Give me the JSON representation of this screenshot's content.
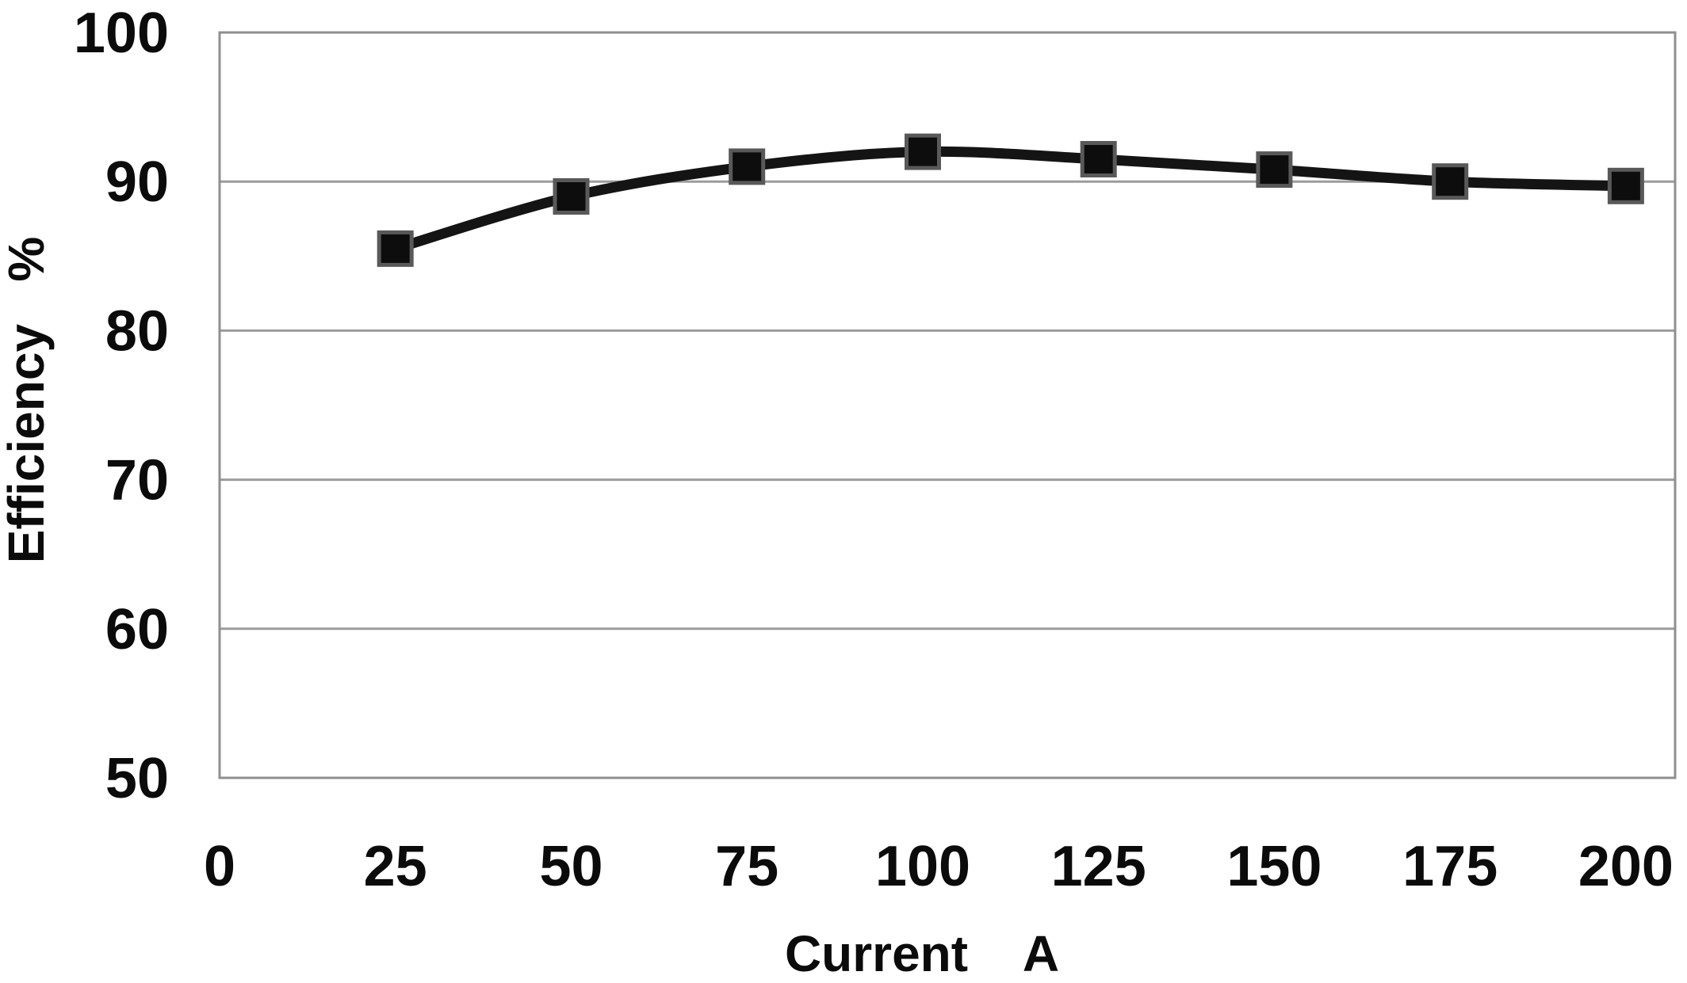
{
  "chart_data": {
    "type": "line",
    "title": "",
    "xlabel": "Current    A",
    "ylabel": "Efficiency   %",
    "x": [
      25,
      50,
      75,
      100,
      125,
      150,
      175,
      200
    ],
    "series": [
      {
        "name": "Efficiency",
        "values": [
          85.5,
          89,
          91,
          92,
          91.5,
          90.8,
          90,
          89.7
        ]
      }
    ],
    "xticks": [
      0,
      25,
      50,
      75,
      100,
      125,
      150,
      175,
      200
    ],
    "yticks": [
      50,
      60,
      70,
      80,
      90,
      100
    ],
    "xlim": [
      0,
      207
    ],
    "ylim": [
      50,
      100
    ],
    "grid": "horizontal",
    "legend": "none",
    "smooth": true,
    "marker": "square",
    "colors": {
      "line": "#141414",
      "marker_fill": "#0d0d0d",
      "marker_stroke": "#595959",
      "gridline": "#9c9c9c",
      "plot_border": "#8f8f8f",
      "text": "#0b0b0b",
      "background": "#ffffff"
    }
  }
}
